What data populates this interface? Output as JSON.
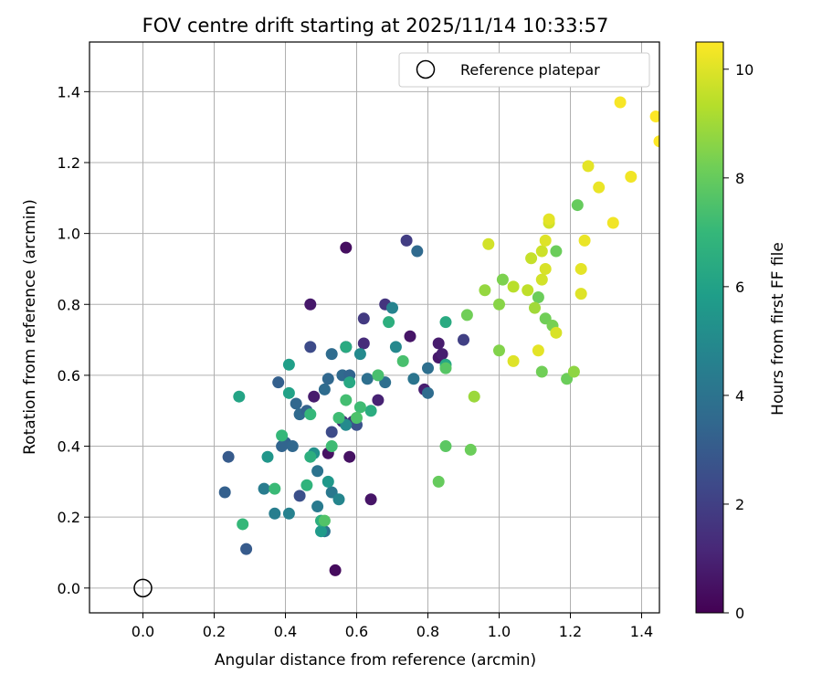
{
  "chart_data": {
    "type": "scatter",
    "title": "FOV centre drift starting at 2025/11/14 10:33:57",
    "xlabel": "Angular distance from reference (arcmin)",
    "ylabel": "Rotation from reference (arcmin)",
    "xlim": [
      -0.15,
      1.45
    ],
    "ylim": [
      -0.07,
      1.54
    ],
    "xticks": [
      "0.0",
      "0.2",
      "0.4",
      "0.6",
      "0.8",
      "1.0",
      "1.2",
      "1.4"
    ],
    "yticks": [
      "0.0",
      "0.2",
      "0.4",
      "0.6",
      "0.8",
      "1.0",
      "1.2",
      "1.4"
    ],
    "grid": true,
    "legend": {
      "position": "top-right",
      "entries": [
        {
          "label": "Reference platepar",
          "marker": "open-circle"
        }
      ]
    },
    "reference_point": {
      "x": 0.0,
      "y": 0.0
    },
    "colorbar": {
      "label": "Hours from first FF file",
      "range": [
        0,
        10.5
      ],
      "ticks": [
        "0",
        "2",
        "4",
        "6",
        "8",
        "10"
      ],
      "colormap": [
        "#440154",
        "#482878",
        "#3e4989",
        "#31688e",
        "#26828e",
        "#1f9e89",
        "#35b779",
        "#6ece58",
        "#b5de2b",
        "#fde725"
      ]
    },
    "points": [
      [
        0.54,
        0.05,
        0.3
      ],
      [
        0.57,
        0.96,
        0.4
      ],
      [
        0.64,
        0.25,
        0.6
      ],
      [
        0.52,
        0.38,
        0.5
      ],
      [
        0.58,
        0.37,
        0.5
      ],
      [
        0.48,
        0.54,
        0.8
      ],
      [
        0.47,
        0.8,
        0.7
      ],
      [
        0.57,
        0.68,
        0.9
      ],
      [
        0.66,
        0.53,
        1.0
      ],
      [
        0.75,
        0.71,
        0.6
      ],
      [
        0.79,
        0.56,
        0.9
      ],
      [
        0.83,
        0.69,
        0.8
      ],
      [
        0.83,
        0.65,
        0.7
      ],
      [
        0.84,
        0.66,
        0.9
      ],
      [
        0.56,
        0.47,
        1.4
      ],
      [
        0.59,
        0.47,
        1.6
      ],
      [
        0.62,
        0.69,
        1.3
      ],
      [
        0.62,
        0.76,
        1.8
      ],
      [
        0.68,
        0.8,
        1.6
      ],
      [
        0.74,
        0.98,
        1.9
      ],
      [
        0.9,
        0.7,
        2.0
      ],
      [
        0.47,
        0.68,
        2.4
      ],
      [
        0.44,
        0.26,
        2.6
      ],
      [
        0.53,
        0.44,
        2.4
      ],
      [
        0.6,
        0.46,
        2.7
      ],
      [
        0.24,
        0.37,
        3.0
      ],
      [
        0.23,
        0.27,
        3.2
      ],
      [
        0.29,
        0.11,
        3.0
      ],
      [
        0.38,
        0.58,
        3.2
      ],
      [
        0.4,
        0.41,
        3.3
      ],
      [
        0.42,
        0.4,
        3.5
      ],
      [
        0.39,
        0.4,
        3.4
      ],
      [
        0.43,
        0.52,
        3.5
      ],
      [
        0.44,
        0.49,
        3.6
      ],
      [
        0.46,
        0.5,
        3.3
      ],
      [
        0.51,
        0.56,
        3.7
      ],
      [
        0.52,
        0.59,
        3.5
      ],
      [
        0.53,
        0.66,
        3.7
      ],
      [
        0.56,
        0.6,
        3.6
      ],
      [
        0.58,
        0.6,
        3.4
      ],
      [
        0.63,
        0.59,
        3.8
      ],
      [
        0.68,
        0.58,
        3.8
      ],
      [
        0.77,
        0.95,
        3.6
      ],
      [
        0.8,
        0.62,
        3.8
      ],
      [
        0.8,
        0.55,
        3.7
      ],
      [
        0.76,
        0.59,
        4.1
      ],
      [
        0.49,
        0.33,
        4.0
      ],
      [
        0.51,
        0.16,
        4.1
      ],
      [
        0.53,
        0.27,
        4.2
      ],
      [
        0.49,
        0.23,
        4.3
      ],
      [
        0.37,
        0.21,
        4.5
      ],
      [
        0.41,
        0.21,
        4.6
      ],
      [
        0.34,
        0.28,
        4.4
      ],
      [
        0.55,
        0.25,
        4.8
      ],
      [
        0.7,
        0.79,
        4.7
      ],
      [
        0.71,
        0.68,
        4.9
      ],
      [
        0.61,
        0.66,
        5.0
      ],
      [
        0.57,
        0.46,
        5.0
      ],
      [
        0.48,
        0.38,
        5.3
      ],
      [
        0.52,
        0.3,
        5.6
      ],
      [
        0.35,
        0.37,
        5.5
      ],
      [
        0.5,
        0.16,
        5.7
      ],
      [
        0.41,
        0.63,
        5.9
      ],
      [
        0.41,
        0.55,
        6.0
      ],
      [
        0.27,
        0.54,
        6.1
      ],
      [
        0.58,
        0.58,
        6.3
      ],
      [
        0.57,
        0.68,
        6.4
      ],
      [
        0.64,
        0.5,
        6.5
      ],
      [
        0.69,
        0.75,
        6.6
      ],
      [
        0.85,
        0.75,
        6.4
      ],
      [
        0.85,
        0.63,
        6.3
      ],
      [
        0.47,
        0.37,
        6.6
      ],
      [
        0.5,
        0.19,
        6.6
      ],
      [
        0.46,
        0.29,
        6.8
      ],
      [
        0.47,
        0.49,
        7.0
      ],
      [
        0.55,
        0.48,
        7.2
      ],
      [
        0.53,
        0.4,
        7.2
      ],
      [
        0.39,
        0.43,
        7.0
      ],
      [
        0.37,
        0.28,
        7.1
      ],
      [
        0.28,
        0.18,
        7.0
      ],
      [
        0.57,
        0.53,
        7.3
      ],
      [
        0.61,
        0.51,
        7.2
      ],
      [
        0.66,
        0.6,
        7.4
      ],
      [
        0.73,
        0.64,
        7.4
      ],
      [
        0.85,
        0.62,
        7.7
      ],
      [
        0.6,
        0.48,
        7.5
      ],
      [
        0.51,
        0.19,
        7.6
      ],
      [
        0.85,
        0.4,
        7.8
      ],
      [
        0.83,
        0.3,
        8.0
      ],
      [
        0.91,
        0.77,
        8.2
      ],
      [
        0.92,
        0.39,
        8.1
      ],
      [
        1.22,
        1.08,
        8.0
      ],
      [
        1.11,
        0.82,
        8.1
      ],
      [
        1.13,
        0.76,
        8.2
      ],
      [
        1.15,
        0.74,
        8.3
      ],
      [
        1.16,
        0.95,
        8.1
      ],
      [
        1.12,
        0.61,
        8.2
      ],
      [
        1.19,
        0.59,
        8.1
      ],
      [
        1.01,
        0.87,
        8.4
      ],
      [
        1.0,
        0.8,
        8.6
      ],
      [
        1.0,
        0.67,
        8.5
      ],
      [
        1.21,
        0.61,
        8.7
      ],
      [
        0.96,
        0.84,
        8.8
      ],
      [
        0.93,
        0.54,
        8.9
      ],
      [
        1.1,
        0.79,
        9.0
      ],
      [
        1.04,
        0.85,
        9.4
      ],
      [
        1.08,
        0.84,
        9.5
      ],
      [
        1.09,
        0.93,
        9.6
      ],
      [
        1.12,
        0.95,
        9.7
      ],
      [
        1.14,
        1.03,
        9.8
      ],
      [
        1.13,
        0.9,
        9.9
      ],
      [
        1.12,
        0.87,
        9.8
      ],
      [
        1.13,
        0.98,
        10.0
      ],
      [
        1.14,
        1.04,
        10.1
      ],
      [
        1.16,
        0.72,
        9.9
      ],
      [
        1.11,
        0.67,
        10.1
      ],
      [
        1.04,
        0.64,
        10.0
      ],
      [
        0.97,
        0.97,
        9.8
      ],
      [
        1.23,
        0.83,
        10.0
      ],
      [
        1.23,
        0.9,
        10.1
      ],
      [
        1.24,
        0.98,
        10.2
      ],
      [
        1.25,
        1.19,
        10.1
      ],
      [
        1.28,
        1.13,
        10.2
      ],
      [
        1.32,
        1.03,
        10.3
      ],
      [
        1.34,
        1.37,
        10.4
      ],
      [
        1.37,
        1.16,
        10.3
      ],
      [
        1.44,
        1.33,
        10.5
      ],
      [
        1.45,
        1.26,
        10.5
      ]
    ]
  }
}
